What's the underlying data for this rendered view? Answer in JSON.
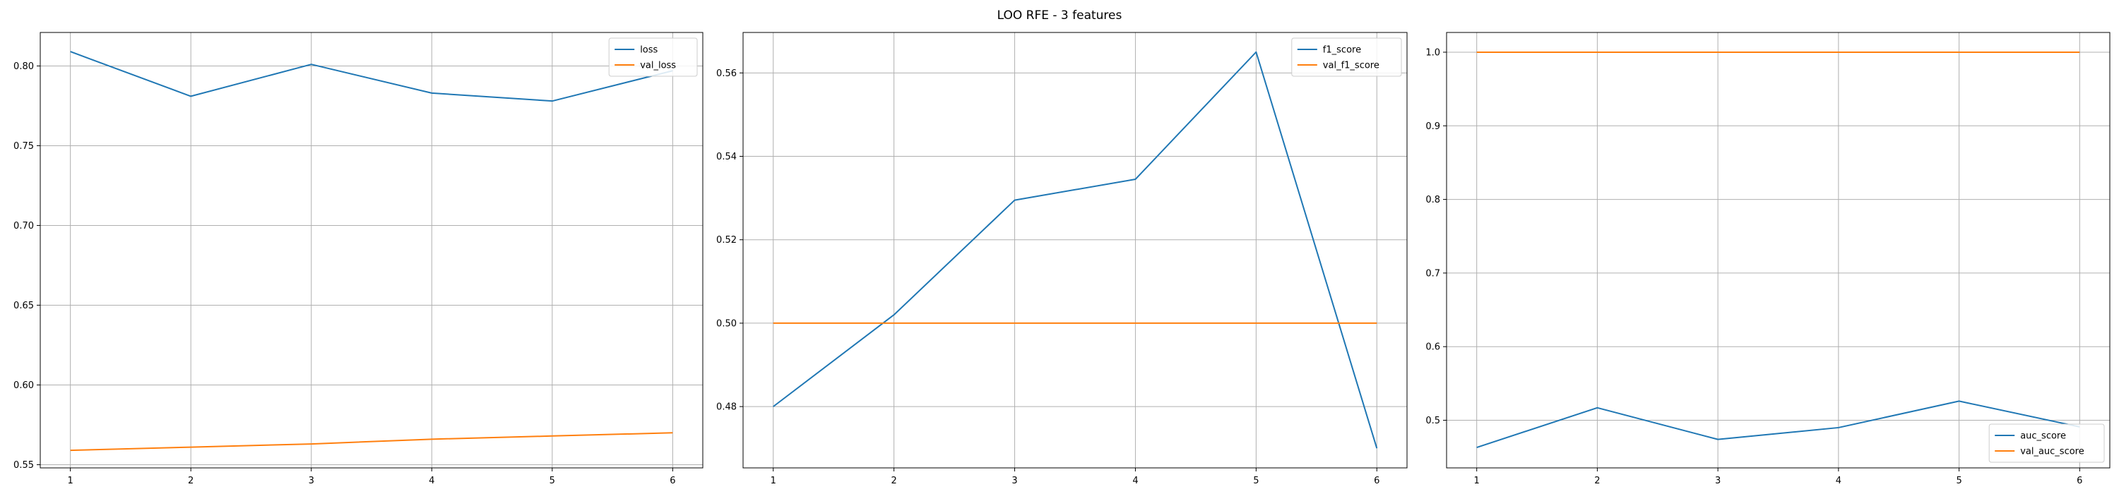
{
  "suptitle": "LOO RFE - 3 features",
  "chart_data": [
    {
      "type": "line",
      "title": "",
      "xlabel": "",
      "ylabel": "",
      "x": [
        1,
        2,
        3,
        4,
        5,
        6
      ],
      "xlim": [
        0.75,
        6.25
      ],
      "ylim": [
        0.548,
        0.821
      ],
      "yticks": [
        0.55,
        0.6,
        0.65,
        0.7,
        0.75,
        0.8
      ],
      "grid": true,
      "legend": "top-right",
      "series": [
        {
          "name": "loss",
          "color": "#1f77b4",
          "values": [
            0.809,
            0.781,
            0.801,
            0.783,
            0.778,
            0.797
          ]
        },
        {
          "name": "val_loss",
          "color": "#ff7f0e",
          "values": [
            0.559,
            0.561,
            0.563,
            0.566,
            0.568,
            0.57
          ]
        }
      ]
    },
    {
      "type": "line",
      "title": "",
      "xlabel": "",
      "ylabel": "",
      "x": [
        1,
        2,
        3,
        4,
        5,
        6
      ],
      "xlim": [
        0.75,
        6.25
      ],
      "ylim": [
        0.4653,
        0.5697
      ],
      "yticks": [
        0.48,
        0.5,
        0.52,
        0.54,
        0.56
      ],
      "grid": true,
      "legend": "top-right",
      "series": [
        {
          "name": "f1_score",
          "color": "#1f77b4",
          "values": [
            0.48,
            0.502,
            0.5295,
            0.5345,
            0.565,
            0.47
          ]
        },
        {
          "name": "val_f1_score",
          "color": "#ff7f0e",
          "values": [
            0.5,
            0.5,
            0.5,
            0.5,
            0.5,
            0.5
          ]
        }
      ]
    },
    {
      "type": "line",
      "title": "",
      "xlabel": "",
      "ylabel": "",
      "x": [
        1,
        2,
        3,
        4,
        5,
        6
      ],
      "xlim": [
        0.75,
        6.25
      ],
      "ylim": [
        0.4353,
        1.0268
      ],
      "yticks": [
        0.5,
        0.6,
        0.7,
        0.8,
        0.9,
        1.0
      ],
      "grid": true,
      "legend": "bottom-right",
      "series": [
        {
          "name": "auc_score",
          "color": "#1f77b4",
          "values": [
            0.463,
            0.517,
            0.474,
            0.49,
            0.526,
            0.491
          ]
        },
        {
          "name": "val_auc_score",
          "color": "#ff7f0e",
          "values": [
            1.0,
            1.0,
            1.0,
            1.0,
            1.0,
            1.0
          ]
        }
      ]
    }
  ]
}
